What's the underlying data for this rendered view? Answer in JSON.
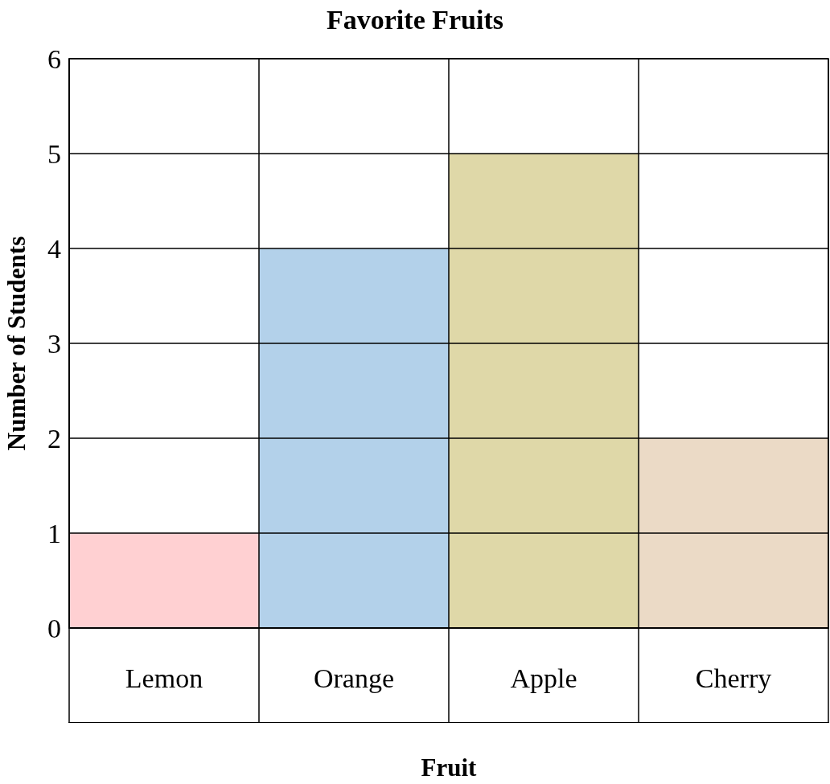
{
  "chart_data": {
    "type": "bar",
    "title": "Favorite Fruits",
    "xlabel": "Fruit",
    "ylabel": "Number of Students",
    "categories": [
      "Lemon",
      "Orange",
      "Apple",
      "Cherry"
    ],
    "values": [
      1,
      4,
      5,
      2
    ],
    "colors": [
      "#ffd0d2",
      "#b3d1ea",
      "#dfd8a8",
      "#ebdac6"
    ],
    "ylim": [
      0,
      6
    ],
    "yticks": [
      0,
      1,
      2,
      3,
      4,
      5,
      6
    ],
    "grid": true
  }
}
